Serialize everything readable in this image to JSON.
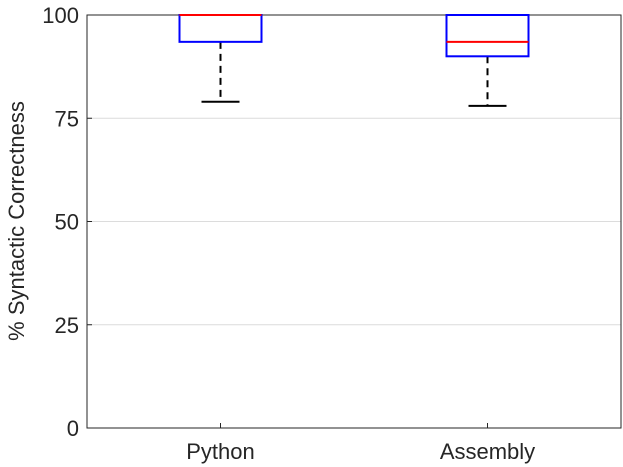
{
  "chart_data": {
    "type": "box",
    "title": "",
    "xlabel": "",
    "ylabel": "% Syntactic Correctness",
    "ylim": [
      0,
      100
    ],
    "yticks": [
      0,
      25,
      50,
      75,
      100
    ],
    "grid": "horizontal",
    "categories": [
      "Python",
      "Assembly"
    ],
    "boxes": [
      {
        "category": "Python",
        "whisker_low": 79,
        "q1": 93.5,
        "median": 100,
        "q3": 100,
        "whisker_high": 100
      },
      {
        "category": "Assembly",
        "whisker_low": 78,
        "q1": 90,
        "median": 93.5,
        "q3": 100,
        "whisker_high": 100
      }
    ],
    "colors": {
      "box": "#0000ff",
      "median": "#ff0000",
      "whisker": "#000000",
      "grid": "#dcdcdc",
      "axis": "#262626"
    }
  }
}
